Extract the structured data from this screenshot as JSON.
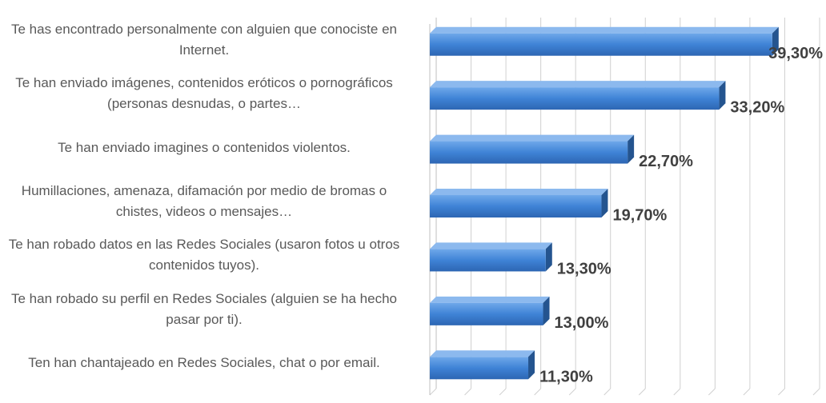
{
  "chart_data": {
    "type": "bar",
    "orientation": "horizontal",
    "categories": [
      "Te has encontrado personalmente con alguien que conociste en Internet.",
      "Te han enviado imágenes, contenidos eróticos o pornográficos (personas desnudas, o partes…",
      "Te han enviado imagines o contenidos violentos.",
      "Humillaciones, amenaza, difamación por medio de bromas o chistes, videos o mensajes…",
      "Te han robado datos en las Redes Sociales (usaron fotos u otros contenidos tuyos).",
      "Te han robado su perfil en Redes Sociales (alguien se ha hecho pasar por ti).",
      "Ten han chantajeado en Redes Sociales, chat o por email."
    ],
    "values": [
      39.3,
      33.2,
      22.7,
      19.7,
      13.3,
      13.0,
      11.3
    ],
    "value_labels": [
      "39,30%",
      "33,20%",
      "22,70%",
      "19,70%",
      "13,30%",
      "13,00%",
      "11,30%"
    ],
    "color": "#3f83d6",
    "xlim": [
      0,
      44
    ],
    "xticks": [
      0,
      4,
      8,
      12,
      16,
      20,
      24,
      28,
      32,
      36,
      40,
      44
    ],
    "grid": true
  }
}
